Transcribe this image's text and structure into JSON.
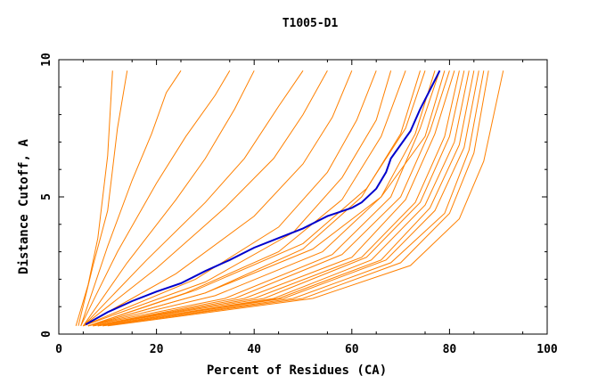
{
  "chart_data": {
    "type": "line",
    "title": "T1005-D1",
    "xlabel": "Percent of Residues (CA)",
    "ylabel": "Distance Cutoff, A",
    "xlim": [
      0,
      100
    ],
    "ylim": [
      0,
      10
    ],
    "x_ticks": [
      "0",
      "20",
      "40",
      "60",
      "80",
      "100"
    ],
    "y_ticks": [
      "0",
      "5",
      "10"
    ],
    "grid": false,
    "colors": {
      "series": "#ff8000",
      "highlight": "#0000cc",
      "axes": "#000000"
    },
    "highlight_series": {
      "x": [
        5.5,
        10,
        15,
        20,
        25,
        30,
        35,
        40,
        45,
        50,
        55,
        60,
        62,
        65,
        67,
        68,
        70,
        72,
        74,
        76,
        78
      ],
      "y": [
        0.35,
        0.8,
        1.2,
        1.55,
        1.85,
        2.3,
        2.7,
        3.15,
        3.5,
        3.85,
        4.3,
        4.6,
        4.8,
        5.3,
        5.9,
        6.4,
        6.9,
        7.4,
        8.2,
        8.9,
        9.6
      ]
    },
    "series": [
      {
        "x": [
          3.5,
          6,
          8,
          10,
          11
        ],
        "y": [
          0.3,
          1.8,
          3.5,
          6.5,
          9.6
        ]
      },
      {
        "x": [
          4,
          7,
          10,
          12,
          14
        ],
        "y": [
          0.3,
          2.5,
          4.5,
          7.5,
          9.6
        ]
      },
      {
        "x": [
          4.5,
          10,
          15,
          19,
          22,
          25
        ],
        "y": [
          0.3,
          3.2,
          5.6,
          7.3,
          8.8,
          9.6
        ]
      },
      {
        "x": [
          4.5,
          12,
          20,
          26,
          32,
          35
        ],
        "y": [
          0.3,
          3.0,
          5.5,
          7.2,
          8.7,
          9.6
        ]
      },
      {
        "x": [
          5,
          14,
          24,
          30,
          36,
          40
        ],
        "y": [
          0.3,
          2.6,
          4.9,
          6.4,
          8.2,
          9.6
        ]
      },
      {
        "x": [
          5,
          18,
          30,
          38,
          45,
          50
        ],
        "y": [
          0.3,
          2.7,
          4.8,
          6.4,
          8.3,
          9.6
        ]
      },
      {
        "x": [
          5,
          20,
          34,
          44,
          50,
          55
        ],
        "y": [
          0.3,
          2.4,
          4.6,
          6.4,
          8.0,
          9.6
        ]
      },
      {
        "x": [
          5,
          24,
          40,
          50,
          56,
          60
        ],
        "y": [
          0.3,
          2.2,
          4.3,
          6.2,
          7.9,
          9.6
        ]
      },
      {
        "x": [
          5,
          28,
          45,
          55,
          61,
          65
        ],
        "y": [
          0.3,
          2.0,
          3.9,
          5.9,
          7.8,
          9.6
        ]
      },
      {
        "x": [
          5,
          30,
          48,
          58,
          65,
          68
        ],
        "y": [
          0.3,
          1.9,
          3.7,
          5.7,
          7.8,
          9.6
        ]
      },
      {
        "x": [
          6,
          26,
          45,
          58,
          66,
          71
        ],
        "y": [
          0.3,
          1.5,
          3.0,
          4.9,
          7.2,
          9.6
        ]
      },
      {
        "x": [
          6,
          30,
          50,
          62,
          70,
          74
        ],
        "y": [
          0.3,
          1.5,
          3.1,
          5.0,
          7.3,
          9.6
        ]
      },
      {
        "x": [
          6,
          32,
          54,
          66,
          73,
          77
        ],
        "y": [
          0.3,
          1.4,
          3.0,
          5.0,
          7.3,
          9.6
        ]
      },
      {
        "x": [
          6,
          34,
          56,
          68,
          74,
          78
        ],
        "y": [
          0.3,
          1.3,
          2.9,
          5.0,
          7.5,
          9.6
        ]
      },
      {
        "x": [
          7,
          36,
          58,
          70,
          76,
          80
        ],
        "y": [
          0.3,
          1.3,
          2.9,
          5.0,
          7.4,
          9.6
        ]
      },
      {
        "x": [
          7,
          38,
          60,
          71,
          77,
          81
        ],
        "y": [
          0.3,
          1.3,
          2.8,
          4.9,
          7.3,
          9.6
        ]
      },
      {
        "x": [
          7,
          40,
          62,
          73,
          79,
          82
        ],
        "y": [
          0.3,
          1.3,
          2.8,
          4.8,
          7.2,
          9.6
        ]
      },
      {
        "x": [
          7,
          42,
          63,
          74,
          80,
          83
        ],
        "y": [
          0.3,
          1.3,
          2.8,
          4.8,
          7.2,
          9.6
        ]
      },
      {
        "x": [
          8,
          44,
          64,
          75,
          81,
          84
        ],
        "y": [
          0.3,
          1.3,
          2.7,
          4.7,
          7.0,
          9.6
        ]
      },
      {
        "x": [
          8,
          45,
          66,
          76,
          82,
          85
        ],
        "y": [
          0.3,
          1.3,
          2.7,
          4.6,
          6.9,
          9.6
        ]
      },
      {
        "x": [
          8,
          46,
          67,
          77,
          83,
          86
        ],
        "y": [
          0.3,
          1.3,
          2.7,
          4.5,
          6.8,
          9.6
        ]
      },
      {
        "x": [
          9,
          48,
          68,
          79,
          84,
          87
        ],
        "y": [
          0.3,
          1.3,
          2.6,
          4.4,
          6.7,
          9.6
        ]
      },
      {
        "x": [
          9,
          50,
          70,
          80,
          85,
          88
        ],
        "y": [
          0.3,
          1.3,
          2.6,
          4.4,
          6.6,
          9.6
        ]
      },
      {
        "x": [
          10,
          52,
          72,
          82,
          87,
          91
        ],
        "y": [
          0.3,
          1.3,
          2.5,
          4.2,
          6.3,
          9.6
        ]
      },
      {
        "x": [
          6,
          28,
          50,
          63,
          71,
          75
        ],
        "y": [
          0.3,
          1.6,
          3.3,
          5.3,
          7.5,
          9.6
        ]
      },
      {
        "x": [
          6,
          30,
          52,
          66,
          75,
          79
        ],
        "y": [
          0.3,
          1.5,
          3.1,
          5.0,
          7.2,
          9.6
        ]
      }
    ]
  }
}
